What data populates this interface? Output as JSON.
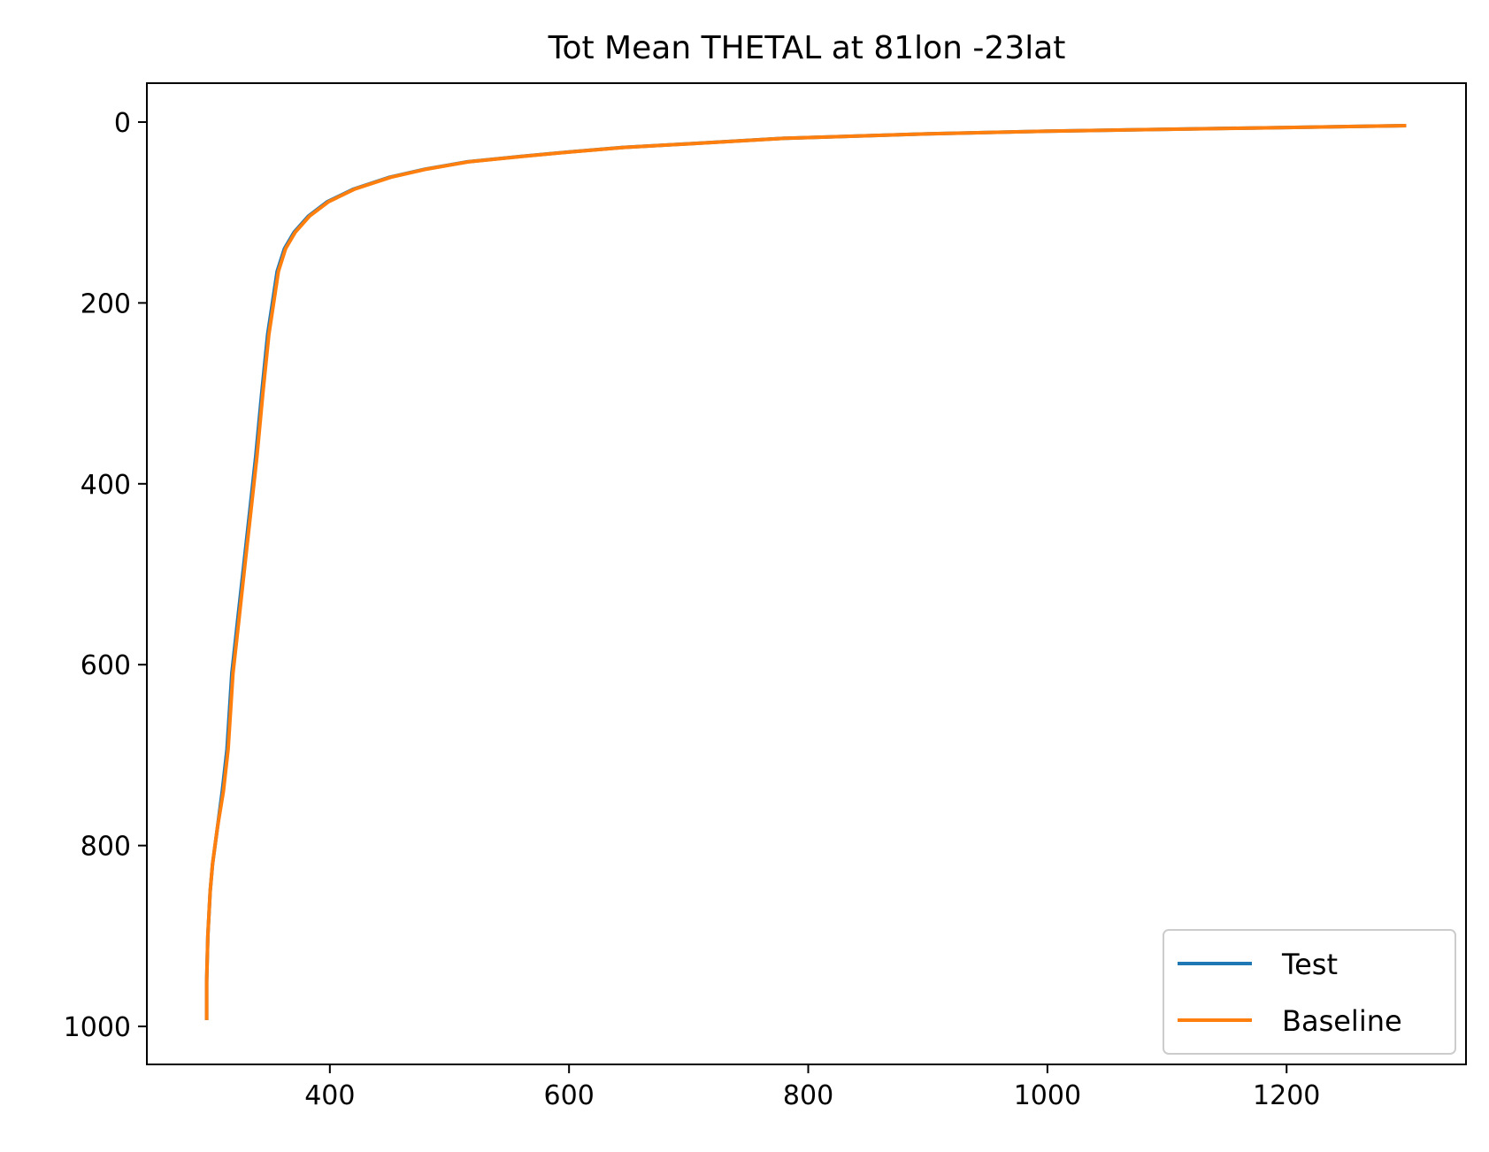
{
  "chart_data": {
    "type": "line",
    "title": "Tot Mean THETAL at 81lon -23lat",
    "xlabel": "",
    "ylabel": "",
    "xlim": [
      247,
      1350
    ],
    "ylim": [
      1042,
      -43
    ],
    "y_inverted": true,
    "grid": false,
    "legend_position": "lower-right",
    "x_ticks": [
      400,
      600,
      800,
      1000,
      1200
    ],
    "y_ticks": [
      0,
      200,
      400,
      600,
      800,
      1000
    ],
    "series": [
      {
        "name": "Test",
        "color": "#1f77b4",
        "points": [
          [
            297,
            993
          ],
          [
            297,
            950
          ],
          [
            298,
            900
          ],
          [
            300,
            850
          ],
          [
            302,
            820
          ],
          [
            306,
            780
          ],
          [
            310,
            740
          ],
          [
            314,
            693
          ],
          [
            318,
            610
          ],
          [
            323,
            550
          ],
          [
            328,
            490
          ],
          [
            333,
            430
          ],
          [
            338,
            370
          ],
          [
            343,
            300
          ],
          [
            348,
            235
          ],
          [
            352,
            200
          ],
          [
            356,
            165
          ],
          [
            362,
            140
          ],
          [
            370,
            122
          ],
          [
            382,
            104
          ],
          [
            398,
            88
          ],
          [
            420,
            74
          ],
          [
            450,
            61
          ],
          [
            480,
            52
          ],
          [
            515,
            44
          ],
          [
            560,
            38
          ],
          [
            600,
            33
          ],
          [
            645,
            28
          ],
          [
            700,
            24
          ],
          [
            780,
            18
          ],
          [
            900,
            13
          ],
          [
            1000,
            10
          ],
          [
            1100,
            8
          ],
          [
            1200,
            6
          ],
          [
            1300,
            4
          ]
        ]
      },
      {
        "name": "Baseline",
        "color": "#ff7f0e",
        "points": [
          [
            297,
            993
          ],
          [
            297,
            950
          ],
          [
            298,
            900
          ],
          [
            300,
            850
          ],
          [
            302,
            820
          ],
          [
            306,
            780
          ],
          [
            311,
            740
          ],
          [
            315,
            693
          ],
          [
            319,
            610
          ],
          [
            324,
            550
          ],
          [
            329,
            490
          ],
          [
            334,
            430
          ],
          [
            339,
            370
          ],
          [
            344,
            300
          ],
          [
            349,
            235
          ],
          [
            353,
            200
          ],
          [
            357,
            165
          ],
          [
            363,
            140
          ],
          [
            371,
            122
          ],
          [
            383,
            104
          ],
          [
            399,
            88
          ],
          [
            421,
            74
          ],
          [
            451,
            61
          ],
          [
            481,
            52
          ],
          [
            516,
            44
          ],
          [
            561,
            38
          ],
          [
            601,
            33
          ],
          [
            646,
            28
          ],
          [
            701,
            24
          ],
          [
            781,
            18
          ],
          [
            901,
            13
          ],
          [
            1001,
            10
          ],
          [
            1101,
            8
          ],
          [
            1201,
            6
          ],
          [
            1300,
            4
          ]
        ]
      }
    ]
  }
}
